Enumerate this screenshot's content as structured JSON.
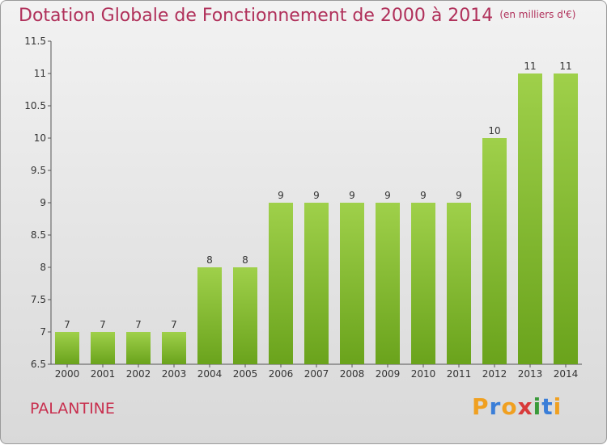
{
  "title": "Dotation Globale de Fonctionnement de 2000 à 2014",
  "subtitle": "(en milliers d'€)",
  "commune": "PALANTINE",
  "logo": {
    "letters": [
      "P",
      "r",
      "o",
      "x",
      "i",
      "t",
      "i"
    ],
    "colors": [
      "#f0a020",
      "#3a7ed8",
      "#f0a020",
      "#d83a3a",
      "#3a9a3a",
      "#3a7ed8",
      "#f0a020"
    ]
  },
  "colors": {
    "bar_top": "#9fd04a",
    "bar_bottom": "#6aa31c",
    "title": "#b0305a"
  },
  "chart_data": {
    "type": "bar",
    "categories": [
      "2000",
      "2001",
      "2002",
      "2003",
      "2004",
      "2005",
      "2006",
      "2007",
      "2008",
      "2009",
      "2010",
      "2011",
      "2012",
      "2013",
      "2014"
    ],
    "values": [
      7,
      7,
      7,
      7,
      8,
      8,
      9,
      9,
      9,
      9,
      9,
      9,
      10,
      11,
      11
    ],
    "data_labels": [
      "7",
      "7",
      "7",
      "7",
      "8",
      "8",
      "9",
      "9",
      "9",
      "9",
      "9",
      "9",
      "10",
      "11",
      "11"
    ],
    "ylim": [
      6.5,
      11.5
    ],
    "yticks": [
      "6.5",
      "7",
      "7.5",
      "8",
      "8.5",
      "9",
      "9.5",
      "10",
      "10.5",
      "11",
      "11.5"
    ],
    "grid": false
  }
}
